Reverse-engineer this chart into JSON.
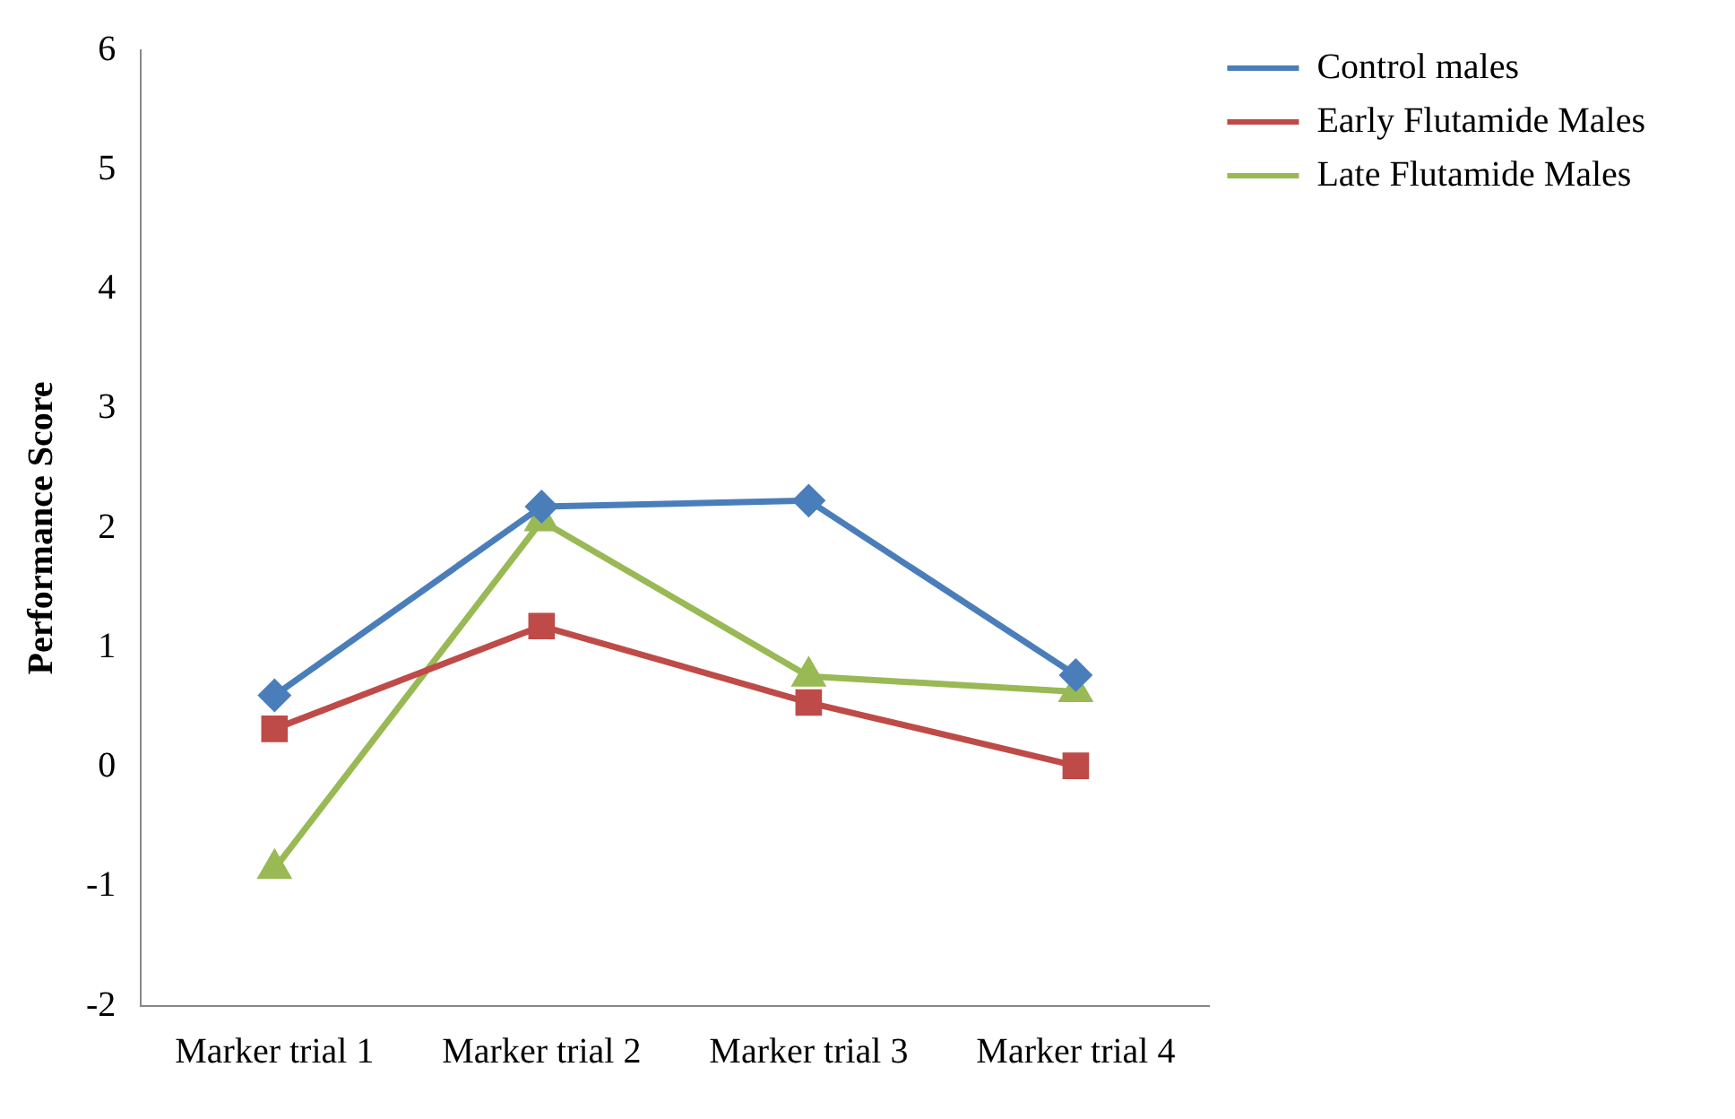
{
  "chart_data": {
    "type": "line",
    "ylabel": "Performance Score",
    "categories": [
      "Marker trial 1",
      "Marker trial 2",
      "Marker trial 3",
      "Marker trial 4"
    ],
    "series": [
      {
        "name": "Control males",
        "color": "#4a7ebb",
        "marker": "diamond",
        "values": [
          0.6,
          2.18,
          2.23,
          0.77
        ]
      },
      {
        "name": "Early Flutamide Males",
        "color": "#be4b48",
        "marker": "square",
        "values": [
          0.32,
          1.18,
          0.54,
          0.01
        ]
      },
      {
        "name": "Late Flutamide Males",
        "color": "#98b954",
        "marker": "triangle",
        "values": [
          -0.85,
          2.06,
          0.76,
          0.63
        ]
      }
    ],
    "ylim": [
      -2,
      6
    ],
    "yticks": [
      -2,
      -1,
      0,
      1,
      2,
      3,
      4,
      5,
      6
    ],
    "grid": false,
    "legend": "top right",
    "line_style": "solid"
  }
}
